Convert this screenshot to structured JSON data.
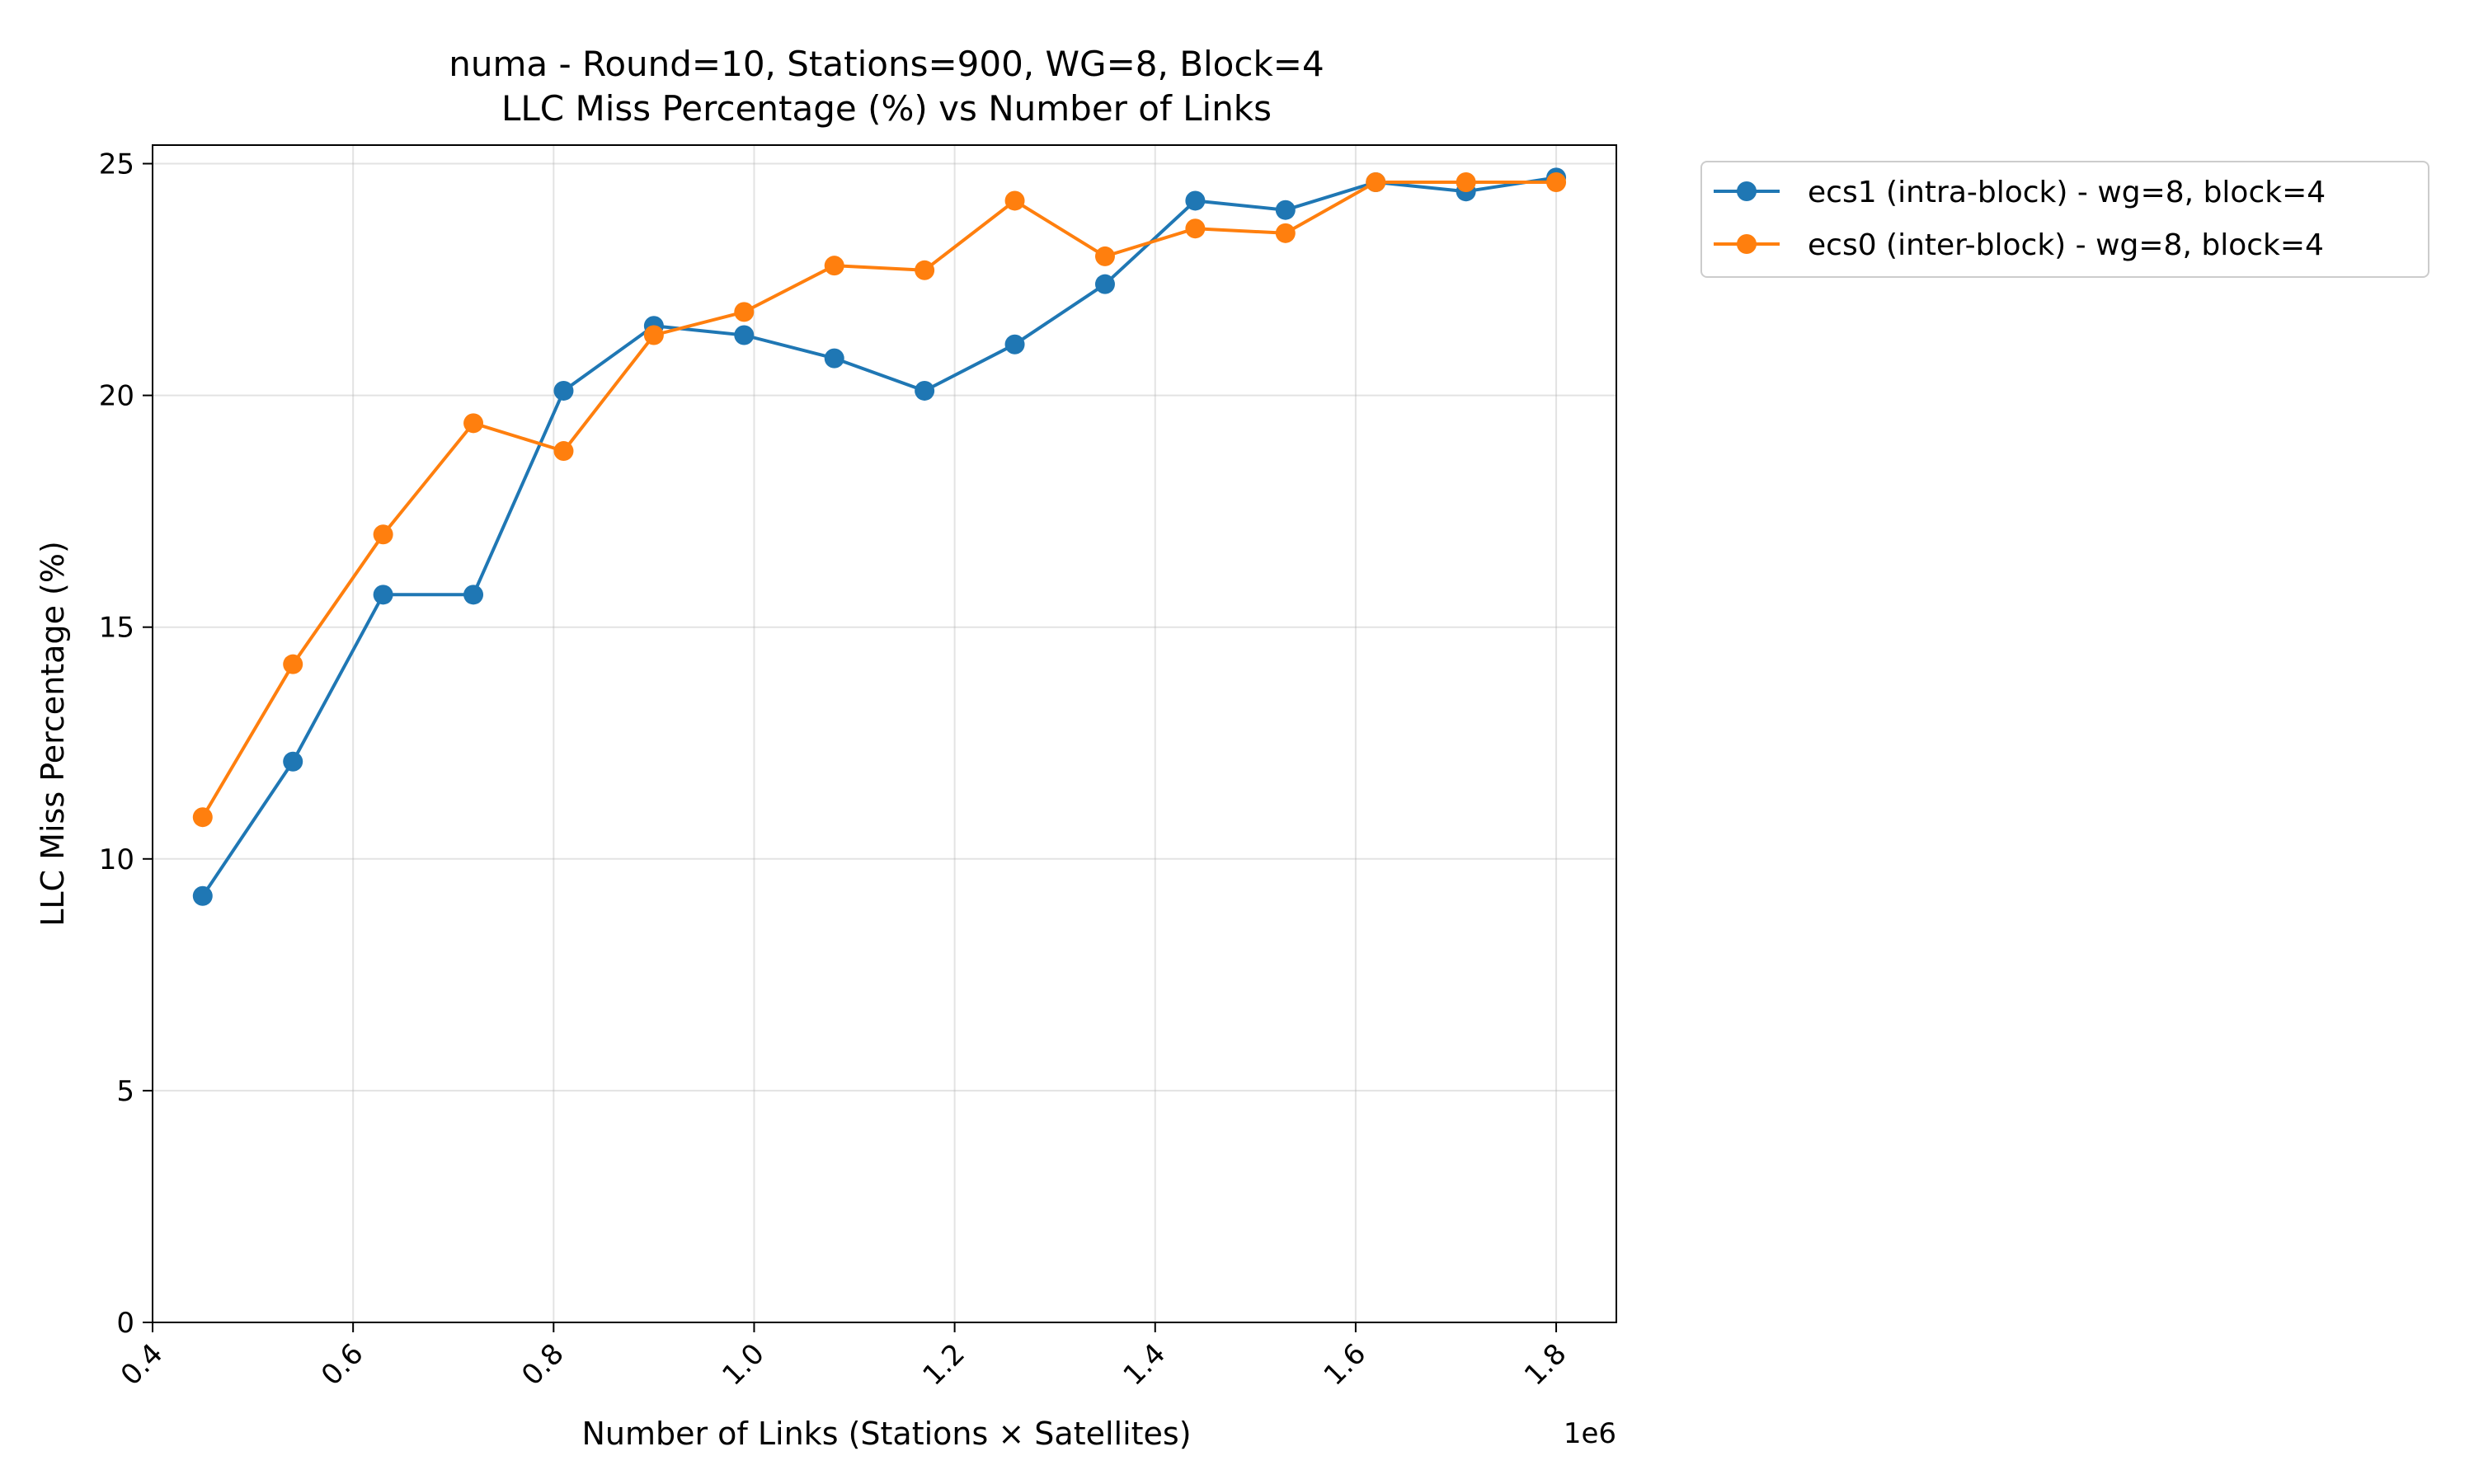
{
  "chart_data": {
    "type": "line",
    "title": "numa - Round=10, Stations=900, WG=8, Block=4",
    "subtitle": "LLC Miss Percentage (%) vs Number of Links",
    "xlabel": "Number of Links (Stations × Satellites)",
    "ylabel": "LLC Miss Percentage (%)",
    "x_offset_label": "1e6",
    "xlim": [
      0.4,
      1.86
    ],
    "ylim": [
      0,
      25.4
    ],
    "x_ticks": [
      0.4,
      0.6,
      0.8,
      1.0,
      1.2,
      1.4,
      1.6,
      1.8
    ],
    "x_tick_labels": [
      "0.4",
      "0.6",
      "0.8",
      "1.0",
      "1.2",
      "1.4",
      "1.6",
      "1.8"
    ],
    "y_ticks": [
      0,
      5,
      10,
      15,
      20,
      25
    ],
    "y_tick_labels": [
      "0",
      "5",
      "10",
      "15",
      "20",
      "25"
    ],
    "grid": true,
    "legend_position": "outside-upper-right",
    "x": [
      0.45,
      0.54,
      0.63,
      0.72,
      0.81,
      0.9,
      0.99,
      1.08,
      1.17,
      1.26,
      1.35,
      1.44,
      1.53,
      1.62,
      1.71,
      1.8
    ],
    "series": [
      {
        "name": "ecs1 (intra-block) - wg=8, block=4",
        "color": "#1f77b4",
        "values": [
          9.2,
          12.1,
          15.7,
          15.7,
          20.1,
          21.5,
          21.3,
          20.8,
          20.1,
          21.1,
          22.4,
          24.2,
          24.0,
          24.6,
          24.4,
          24.7
        ]
      },
      {
        "name": "ecs0 (inter-block) - wg=8, block=4",
        "color": "#ff7f0e",
        "values": [
          10.9,
          14.2,
          17.0,
          19.4,
          18.8,
          21.3,
          21.8,
          22.8,
          22.7,
          24.2,
          23.0,
          23.6,
          23.5,
          24.6,
          24.6,
          24.6
        ]
      }
    ]
  }
}
